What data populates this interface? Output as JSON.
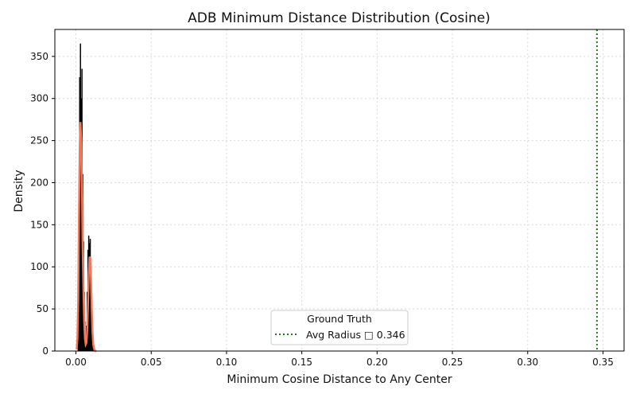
{
  "chart_data": {
    "type": "histogram",
    "title": "ADB Minimum Distance Distribution (Cosine)",
    "xlabel": "Minimum Cosine Distance to Any Center",
    "ylabel": "Density",
    "xlim": [
      -0.014,
      0.364
    ],
    "ylim": [
      0,
      382
    ],
    "x_ticks": [
      0.0,
      0.05,
      0.1,
      0.15,
      0.2,
      0.25,
      0.3,
      0.35
    ],
    "x_tick_labels": [
      "0.00",
      "0.05",
      "0.10",
      "0.15",
      "0.20",
      "0.25",
      "0.30",
      "0.35"
    ],
    "y_ticks": [
      0,
      50,
      100,
      150,
      200,
      250,
      300,
      350
    ],
    "y_tick_labels": [
      "0",
      "50",
      "100",
      "150",
      "200",
      "250",
      "300",
      "350"
    ],
    "grid": true,
    "histogram": {
      "x": [
        0.0015,
        0.002,
        0.0025,
        0.003,
        0.0035,
        0.004,
        0.0045,
        0.005,
        0.0055,
        0.006,
        0.0065,
        0.007,
        0.0075,
        0.008,
        0.0085,
        0.009,
        0.0095,
        0.01,
        0.0105,
        0.011,
        0.0115,
        0.012,
        0.0125,
        0.013
      ],
      "density": [
        50,
        180,
        325,
        365,
        300,
        335,
        210,
        130,
        70,
        35,
        18,
        30,
        70,
        120,
        137,
        128,
        133,
        95,
        60,
        30,
        12,
        5,
        2,
        1
      ]
    },
    "kde": {
      "x": [
        0.0005,
        0.001,
        0.0015,
        0.002,
        0.0025,
        0.003,
        0.0035,
        0.004,
        0.0045,
        0.005,
        0.0055,
        0.006,
        0.0065,
        0.007,
        0.0075,
        0.008,
        0.0085,
        0.009,
        0.0095,
        0.01,
        0.0105,
        0.011,
        0.0115,
        0.012,
        0.0125,
        0.013,
        0.0135
      ],
      "density": [
        2,
        15,
        60,
        160,
        240,
        272,
        250,
        190,
        120,
        70,
        35,
        15,
        8,
        10,
        25,
        55,
        90,
        112,
        110,
        85,
        50,
        22,
        8,
        3,
        1,
        0,
        0
      ]
    },
    "reference_line": {
      "x": 0.346,
      "style": "dotted"
    },
    "legend": {
      "title": "Ground Truth",
      "entries": [
        {
          "label": "Avg Radius □ 0.346"
        }
      ],
      "placement": "lower-center"
    },
    "colors": {
      "histogram": "#000000",
      "kde": "#f07858",
      "reference_line": "#1a7f1a",
      "grid": "#d9d9d9"
    }
  }
}
